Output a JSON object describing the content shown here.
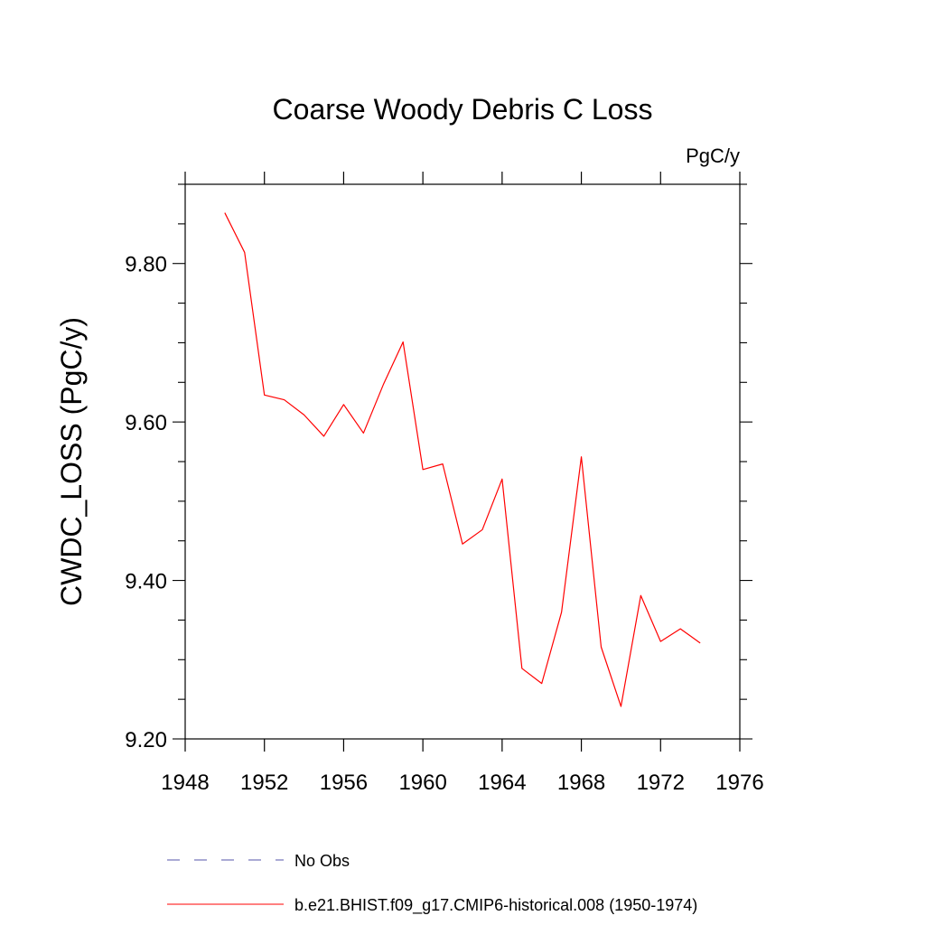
{
  "chart_data": {
    "type": "line",
    "title": "Coarse Woody Debris C Loss",
    "units_label": "PgC/y",
    "ylabel": "CWDC_LOSS  (PgC/y)",
    "xlabel": "",
    "xlim": [
      1948,
      1976
    ],
    "ylim": [
      9.2,
      9.9
    ],
    "x_ticks": [
      1948,
      1952,
      1956,
      1960,
      1964,
      1968,
      1972,
      1976
    ],
    "y_ticks": [
      "9.20",
      "9.40",
      "9.60",
      "9.80"
    ],
    "y_tick_values": [
      9.2,
      9.4,
      9.6,
      9.8
    ],
    "grid": false,
    "legend_position": "bottom",
    "x": [
      1950,
      1951,
      1952,
      1953,
      1954,
      1955,
      1956,
      1957,
      1958,
      1959,
      1960,
      1961,
      1962,
      1963,
      1964,
      1965,
      1966,
      1967,
      1968,
      1969,
      1970,
      1971,
      1972,
      1973,
      1974
    ],
    "series": [
      {
        "name": "b.e21.BHIST.f09_g17.CMIP6-historical.008 (1950-1974)",
        "color": "#ff0000",
        "style": "solid",
        "values": [
          9.864,
          9.814,
          9.634,
          9.628,
          9.609,
          9.582,
          9.622,
          9.586,
          9.647,
          9.701,
          9.54,
          9.547,
          9.446,
          9.464,
          9.528,
          9.289,
          9.27,
          9.36,
          9.556,
          9.316,
          9.241,
          9.381,
          9.323,
          9.339,
          9.321
        ]
      }
    ],
    "legend": [
      {
        "label": "No Obs",
        "color": "#5555aa",
        "style": "dashed"
      },
      {
        "label": "b.e21.BHIST.f09_g17.CMIP6-historical.008 (1950-1974)",
        "color": "#ff0000",
        "style": "solid"
      }
    ]
  }
}
